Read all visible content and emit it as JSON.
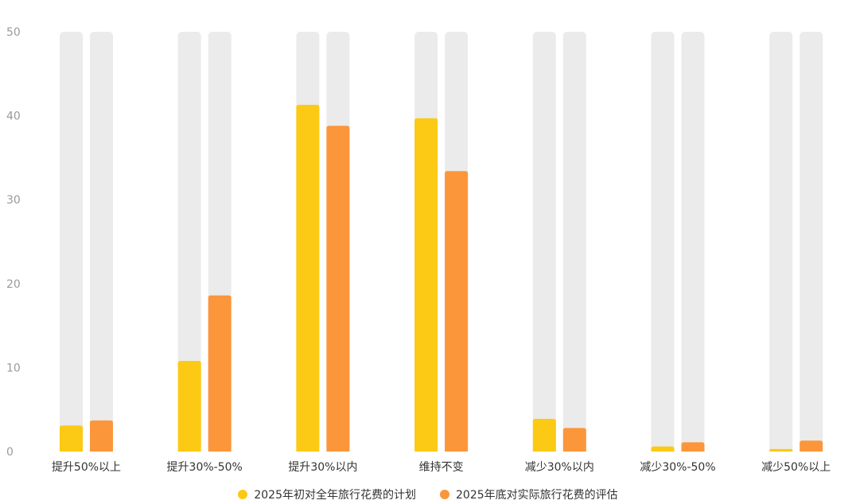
{
  "chart_data": {
    "type": "bar",
    "title": "",
    "xlabel": "",
    "ylabel": "",
    "ylim": [
      0,
      50
    ],
    "yticks": [
      0,
      10,
      20,
      30,
      40,
      50
    ],
    "grid": false,
    "legend_position": "bottom-center",
    "background_bar_color": "#ebebeb",
    "categories": [
      "提升50%以上",
      "提升30%-50%",
      "提升30%以内",
      "维持不变",
      "减少30%以内",
      "减少30%-50%",
      "减少50%以上"
    ],
    "series": [
      {
        "name": "2025年初对全年旅行花费的计划",
        "color": "#fcc914",
        "values": [
          3.1,
          10.8,
          41.3,
          39.7,
          3.9,
          0.6,
          0.3
        ]
      },
      {
        "name": "2025年底对实际旅行花费的评估",
        "color": "#fb963a",
        "values": [
          3.7,
          18.6,
          38.8,
          33.4,
          2.8,
          1.1,
          1.3
        ]
      }
    ]
  }
}
